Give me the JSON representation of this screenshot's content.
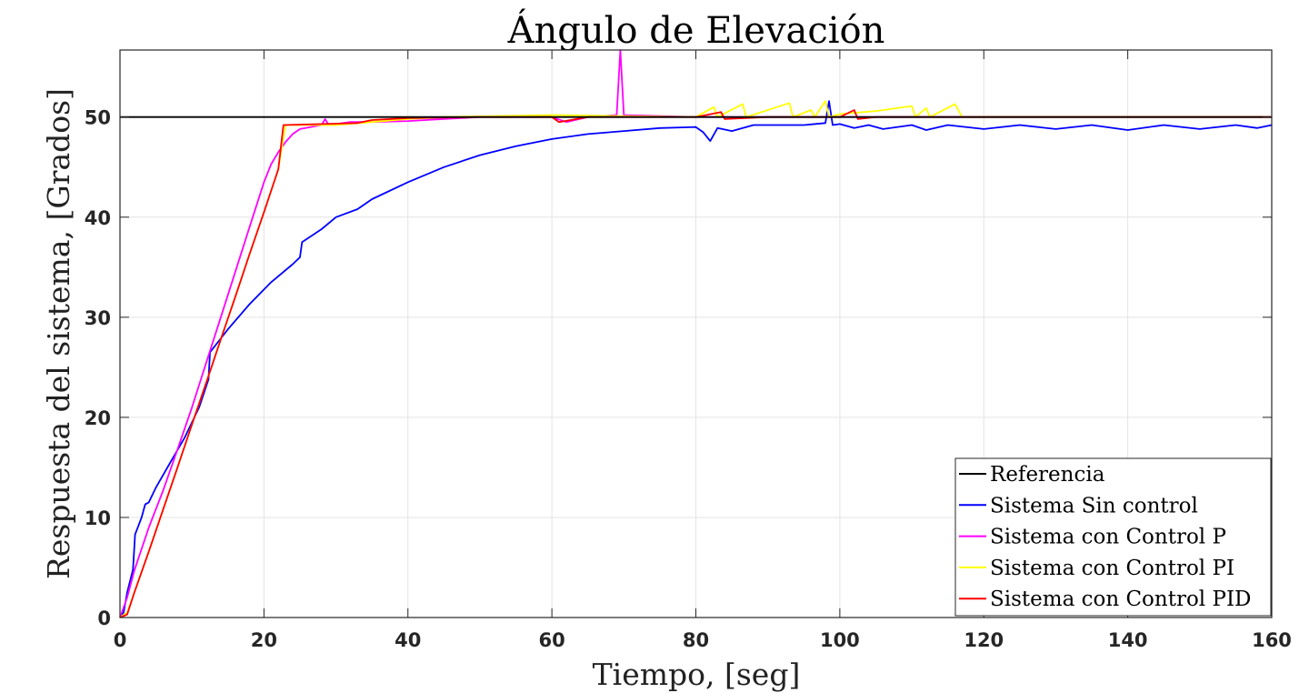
{
  "chart_data": {
    "type": "line",
    "title": "Ángulo de Elevación",
    "xlabel": "Tiempo, [seg]",
    "ylabel": "Respuesta del sistema, [Grados]",
    "xlim": [
      0,
      160
    ],
    "ylim": [
      0,
      56.7
    ],
    "xticks": [
      0,
      20,
      40,
      60,
      80,
      100,
      120,
      140,
      160
    ],
    "yticks": [
      0,
      10,
      20,
      30,
      40,
      50
    ],
    "grid": true,
    "legend_position": "bottom-right",
    "series": [
      {
        "name": "Referencia",
        "color": "#000000",
        "points": [
          [
            0,
            50
          ],
          [
            160,
            50
          ]
        ]
      },
      {
        "name": "Sistema Sin control",
        "color": "#0000ff",
        "points": [
          [
            0,
            0
          ],
          [
            0.5,
            0.5
          ],
          [
            1,
            2.5
          ],
          [
            1.8,
            4.8
          ],
          [
            2.1,
            8.3
          ],
          [
            3,
            10
          ],
          [
            3.5,
            11.3
          ],
          [
            4,
            11.5
          ],
          [
            5,
            13
          ],
          [
            7,
            15.5
          ],
          [
            9,
            18
          ],
          [
            11,
            21
          ],
          [
            12.3,
            23.8
          ],
          [
            12.5,
            26.5
          ],
          [
            15,
            28.8
          ],
          [
            18,
            31.3
          ],
          [
            21,
            33.5
          ],
          [
            24,
            35.3
          ],
          [
            25,
            36
          ],
          [
            25.3,
            37.5
          ],
          [
            28,
            38.8
          ],
          [
            30,
            40
          ],
          [
            33,
            40.8
          ],
          [
            35,
            41.8
          ],
          [
            40,
            43.5
          ],
          [
            45,
            45
          ],
          [
            50,
            46.2
          ],
          [
            55,
            47.1
          ],
          [
            60,
            47.8
          ],
          [
            65,
            48.3
          ],
          [
            70,
            48.6
          ],
          [
            75,
            48.9
          ],
          [
            80,
            49
          ],
          [
            81,
            48.5
          ],
          [
            82,
            47.6
          ],
          [
            83,
            48.9
          ],
          [
            85,
            48.6
          ],
          [
            88,
            49.2
          ],
          [
            95,
            49.2
          ],
          [
            98,
            49.4
          ],
          [
            98.5,
            51.6
          ],
          [
            99,
            49.2
          ],
          [
            100,
            49.3
          ],
          [
            102,
            48.9
          ],
          [
            104,
            49.2
          ],
          [
            106,
            48.8
          ],
          [
            110,
            49.2
          ],
          [
            112,
            48.7
          ],
          [
            115,
            49.2
          ],
          [
            120,
            48.8
          ],
          [
            125,
            49.2
          ],
          [
            130,
            48.8
          ],
          [
            135,
            49.2
          ],
          [
            140,
            48.7
          ],
          [
            145,
            49.2
          ],
          [
            150,
            48.8
          ],
          [
            155,
            49.2
          ],
          [
            158,
            48.9
          ],
          [
            160,
            49.2
          ]
        ]
      },
      {
        "name": "Sistema con Control P",
        "color": "#ff00ff",
        "points": [
          [
            0,
            0
          ],
          [
            1,
            2
          ],
          [
            2,
            4.7
          ],
          [
            4,
            9
          ],
          [
            6,
            12.7
          ],
          [
            8,
            16.8
          ],
          [
            10,
            21
          ],
          [
            12,
            25.5
          ],
          [
            14,
            30
          ],
          [
            16,
            34.5
          ],
          [
            18,
            39
          ],
          [
            20,
            43.5
          ],
          [
            21,
            45.3
          ],
          [
            22,
            46.5
          ],
          [
            23,
            47.5
          ],
          [
            24,
            48.3
          ],
          [
            25,
            48.8
          ],
          [
            28,
            49.2
          ],
          [
            28.5,
            49.8
          ],
          [
            29,
            49.2
          ],
          [
            32,
            49.5
          ],
          [
            35,
            49.5
          ],
          [
            40,
            49.6
          ],
          [
            45,
            49.8
          ],
          [
            50,
            50
          ],
          [
            60,
            50
          ],
          [
            62,
            49.5
          ],
          [
            65,
            50
          ],
          [
            69,
            50.2
          ],
          [
            69.5,
            56.7
          ],
          [
            70,
            50.2
          ],
          [
            75,
            50.1
          ],
          [
            80,
            50
          ],
          [
            90,
            50
          ],
          [
            100,
            50
          ],
          [
            110,
            50
          ],
          [
            120,
            50
          ],
          [
            130,
            50
          ],
          [
            140,
            50
          ],
          [
            150,
            50
          ],
          [
            160,
            50
          ]
        ]
      },
      {
        "name": "Sistema con Control PI",
        "color": "#ffff00",
        "points": [
          [
            0,
            0
          ],
          [
            1,
            0.5
          ],
          [
            2,
            2.5
          ],
          [
            4,
            6.6
          ],
          [
            6,
            10.8
          ],
          [
            8,
            15
          ],
          [
            10,
            19.3
          ],
          [
            12,
            23.5
          ],
          [
            14,
            27.8
          ],
          [
            16,
            32
          ],
          [
            18,
            36.3
          ],
          [
            20,
            40.5
          ],
          [
            22,
            44.8
          ],
          [
            23,
            49.2
          ],
          [
            30,
            49.2
          ],
          [
            35,
            49.5
          ],
          [
            40,
            49.8
          ],
          [
            45,
            50
          ],
          [
            60,
            50.2
          ],
          [
            70,
            50.1
          ],
          [
            80,
            50
          ],
          [
            82.5,
            51
          ],
          [
            83,
            50
          ],
          [
            86.5,
            51.3
          ],
          [
            87,
            50
          ],
          [
            93,
            51.4
          ],
          [
            93.5,
            50
          ],
          [
            96,
            50.7
          ],
          [
            96.5,
            50
          ],
          [
            98,
            51.6
          ],
          [
            98.5,
            50
          ],
          [
            100,
            50.3
          ],
          [
            105,
            50.6
          ],
          [
            110,
            51.1
          ],
          [
            110.5,
            50
          ],
          [
            112,
            50.9
          ],
          [
            112.5,
            50
          ],
          [
            116,
            51.3
          ],
          [
            117,
            50
          ],
          [
            120,
            50
          ],
          [
            140,
            50
          ],
          [
            160,
            50
          ]
        ]
      },
      {
        "name": "Sistema con Control PID",
        "color": "#ff0000",
        "points": [
          [
            0,
            0
          ],
          [
            1,
            0.3
          ],
          [
            2,
            2.5
          ],
          [
            4,
            6.6
          ],
          [
            6,
            10.8
          ],
          [
            8,
            15
          ],
          [
            10,
            19.3
          ],
          [
            12,
            23.5
          ],
          [
            14,
            27.8
          ],
          [
            16,
            32
          ],
          [
            18,
            36.3
          ],
          [
            20,
            40.5
          ],
          [
            22,
            44.8
          ],
          [
            22.7,
            49.2
          ],
          [
            28,
            49.3
          ],
          [
            33,
            49.4
          ],
          [
            35,
            49.7
          ],
          [
            40,
            49.9
          ],
          [
            50,
            50
          ],
          [
            60,
            50
          ],
          [
            61,
            49.5
          ],
          [
            65,
            50
          ],
          [
            80,
            50
          ],
          [
            83.5,
            50.5
          ],
          [
            84,
            49.8
          ],
          [
            90,
            50
          ],
          [
            100,
            50
          ],
          [
            102,
            50.7
          ],
          [
            102.5,
            49.8
          ],
          [
            105,
            50
          ],
          [
            120,
            50
          ],
          [
            140,
            50
          ],
          [
            160,
            50
          ]
        ]
      }
    ]
  }
}
